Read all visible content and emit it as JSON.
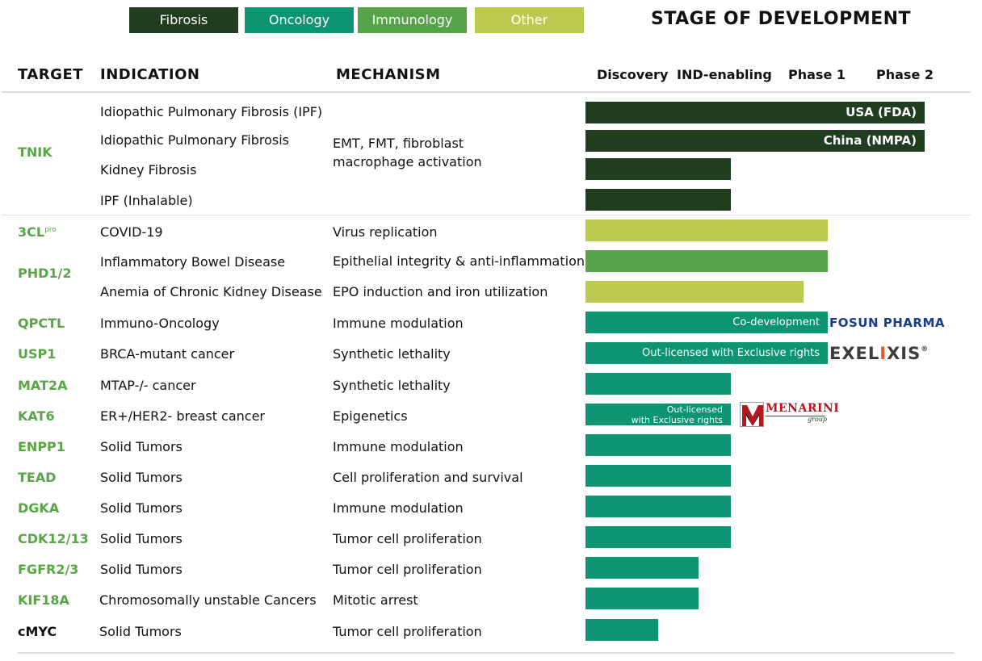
{
  "legend": [
    {
      "label": "Fibrosis",
      "color": "#213d1f"
    },
    {
      "label": "Oncology",
      "color": "#0c9473"
    },
    {
      "label": "Immunology",
      "color": "#55a447"
    },
    {
      "label": "Other",
      "color": "#bccb4f"
    }
  ],
  "stage_title": "STAGE OF DEVELOPMENT",
  "columns": {
    "target": "TARGET",
    "indication": "INDICATION",
    "mechanism": "MECHANISM"
  },
  "stages": [
    "Discovery",
    "IND-enabling",
    "Phase 1",
    "Phase 2"
  ],
  "chart_data": {
    "type": "bar",
    "orientation": "horizontal",
    "value_unit": "stage progress (0 = start of Discovery, 4 = end of Phase 2)",
    "xlim": [
      0,
      4
    ],
    "rows": [
      {
        "target": "TNIK",
        "indication": "Idiopathic Pulmonary Fibrosis (IPF)",
        "area": "Fibrosis",
        "progress": 3.5,
        "bar_label": "USA (FDA)"
      },
      {
        "target": "TNIK",
        "indication": "Idiopathic Pulmonary Fibrosis",
        "area": "Fibrosis",
        "progress": 3.5,
        "bar_label": "China (NMPA)"
      },
      {
        "target": "TNIK",
        "indication": "Kidney Fibrosis",
        "area": "Fibrosis",
        "progress": 1.5
      },
      {
        "target": "TNIK",
        "indication": "IPF (Inhalable)",
        "area": "Fibrosis",
        "progress": 1.5
      },
      {
        "target": "3CL pro",
        "indication": "COVID-19",
        "mechanism": "Virus replication",
        "area": "Other",
        "progress": 2.5
      },
      {
        "target": "PHD1/2",
        "indication": "Inflammatory Bowel Disease",
        "mechanism": "Epithelial integrity & anti-inflammation",
        "area": "Immunology",
        "progress": 2.5
      },
      {
        "target": "PHD1/2",
        "indication": "Anemia of Chronic Kidney Disease",
        "mechanism": "EPO induction and iron utilization",
        "area": "Other",
        "progress": 2.25
      },
      {
        "target": "QPCTL",
        "indication": "Immuno-Oncology",
        "mechanism": "Immune modulation",
        "area": "Oncology",
        "progress": 2.5,
        "bar_label": "Co-development",
        "partner": "FOSUN PHARMA"
      },
      {
        "target": "USP1",
        "indication": "BRCA-mutant cancer",
        "mechanism": "Synthetic lethality",
        "area": "Oncology",
        "progress": 2.5,
        "bar_label": "Out-licensed with Exclusive rights",
        "partner": "EXELIXIS"
      },
      {
        "target": "MAT2A",
        "indication": "MTAP-/- cancer",
        "mechanism": "Synthetic lethality",
        "area": "Oncology",
        "progress": 1.5
      },
      {
        "target": "KAT6",
        "indication": "ER+/HER2- breast cancer",
        "mechanism": "Epigenetics",
        "area": "Oncology",
        "progress": 1.5,
        "bar_label": [
          "Out-licensed",
          "with Exclusive rights"
        ],
        "partner": "MENARINI group"
      },
      {
        "target": "ENPP1",
        "indication": "Solid Tumors",
        "mechanism": "Immune modulation",
        "area": "Oncology",
        "progress": 1.5
      },
      {
        "target": "TEAD",
        "indication": "Solid Tumors",
        "mechanism": "Cell proliferation and survival",
        "area": "Oncology",
        "progress": 1.5
      },
      {
        "target": "DGKA",
        "indication": "Solid Tumors",
        "mechanism": "Immune modulation",
        "area": "Oncology",
        "progress": 1.5
      },
      {
        "target": "CDK12/13",
        "indication": "Solid Tumors",
        "mechanism": "Tumor cell proliferation",
        "area": "Oncology",
        "progress": 1.5
      },
      {
        "target": "FGFR2/3",
        "indication": "Solid Tumors",
        "mechanism": "Tumor cell proliferation",
        "area": "Oncology",
        "progress": 1.17
      },
      {
        "target": "KIF18A",
        "indication": "Chromosomally unstable Cancers",
        "mechanism": "Mitotic arrest",
        "area": "Oncology",
        "progress": 1.17
      },
      {
        "target": "cMYC",
        "indication": "Solid Tumors",
        "mechanism": "Tumor cell proliferation",
        "area": "Oncology",
        "progress": 0.75
      }
    ]
  },
  "tnik": {
    "target": "TNIK",
    "mechanism_lines": [
      "EMT, FMT, fibroblast",
      "macrophage activation"
    ]
  },
  "target_3cl": {
    "base": "3CL",
    "sup": "pro"
  },
  "phd": {
    "target": "PHD1/2"
  },
  "partners": {
    "fosun": "FOSUN PHARMA",
    "exelixis_pre": "EXEL",
    "exelixis_star": "I",
    "exelixis_post": "XIS",
    "exelixis_mark": "®",
    "menarini": "MENARINI",
    "menarini_sub": "group"
  },
  "colors": {
    "target_text": "#5aa547",
    "cmyc_target": "#111111"
  }
}
